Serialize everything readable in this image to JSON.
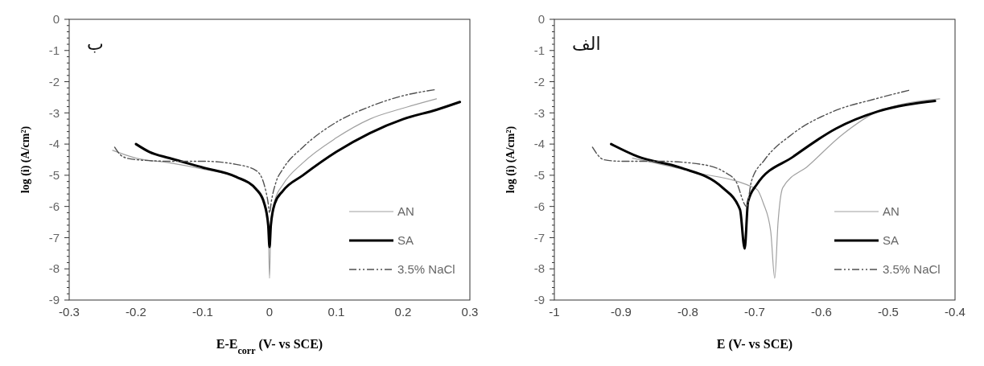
{
  "chart_data": [
    {
      "type": "line",
      "xlabel": "E-E$_{corr}$ (V- vs SCE)",
      "ylabel": "log (i) (A/cm²)",
      "annotations": [
        "ب"
      ],
      "xlim": [
        -0.3,
        0.3
      ],
      "ylim": [
        -9,
        0
      ],
      "xticks": [
        -0.3,
        -0.2,
        -0.1,
        0,
        0.1,
        0.2,
        0.3
      ],
      "yticks": [
        -9,
        -8,
        -7,
        -6,
        -5,
        -4,
        -3,
        -2,
        -1,
        0
      ],
      "grid": false,
      "legend": "bottom right",
      "series": [
        {
          "name": "AN",
          "color": "#a0a0a0",
          "x": [
            -0.235,
            -0.2,
            -0.15,
            -0.1,
            -0.05,
            -0.02,
            -0.008,
            -0.002,
            0,
            0.002,
            0.008,
            0.02,
            0.05,
            0.1,
            0.15,
            0.2,
            0.25
          ],
          "values": [
            -4.2,
            -4.45,
            -4.6,
            -4.8,
            -5.05,
            -5.4,
            -5.8,
            -6.5,
            -8.3,
            -6.5,
            -5.8,
            -5.3,
            -4.6,
            -3.8,
            -3.2,
            -2.85,
            -2.55
          ]
        },
        {
          "name": "SA",
          "color": "#000000",
          "x": [
            -0.2,
            -0.18,
            -0.15,
            -0.1,
            -0.05,
            -0.02,
            -0.008,
            -0.002,
            0,
            0.002,
            0.008,
            0.02,
            0.05,
            0.1,
            0.15,
            0.2,
            0.25,
            0.285
          ],
          "values": [
            -4,
            -4.25,
            -4.45,
            -4.75,
            -5.05,
            -5.45,
            -5.9,
            -6.6,
            -7.3,
            -6.6,
            -5.9,
            -5.5,
            -5,
            -4.25,
            -3.65,
            -3.2,
            -2.9,
            -2.65
          ]
        },
        {
          "name": "3.5% NaCl",
          "color": "#505050",
          "line_style": "dashed",
          "x": [
            -0.232,
            -0.22,
            -0.2,
            -0.15,
            -0.1,
            -0.05,
            -0.02,
            -0.008,
            -0.002,
            0,
            0.003,
            0.01,
            0.02,
            0.05,
            0.1,
            0.15,
            0.2,
            0.25
          ],
          "values": [
            -4.1,
            -4.4,
            -4.5,
            -4.55,
            -4.55,
            -4.65,
            -4.85,
            -5.3,
            -5.9,
            -6.2,
            -5.8,
            -5.2,
            -4.8,
            -4.1,
            -3.3,
            -2.8,
            -2.45,
            -2.25
          ]
        }
      ]
    },
    {
      "type": "line",
      "xlabel": "E (V- vs SCE)",
      "ylabel": "log (i) (A/cm²)",
      "annotations": [
        "الف"
      ],
      "xlim": [
        -1,
        -0.4
      ],
      "ylim": [
        -9,
        0
      ],
      "xticks": [
        -1,
        -0.9,
        -0.8,
        -0.7,
        -0.6,
        -0.5,
        -0.4
      ],
      "yticks": [
        -9,
        -8,
        -7,
        -6,
        -5,
        -4,
        -3,
        -2,
        -1,
        0
      ],
      "grid": false,
      "legend": "bottom right",
      "series": [
        {
          "name": "AN",
          "color": "#a0a0a0",
          "x": [
            -0.883,
            -0.79,
            -0.697,
            -0.687,
            -0.676,
            -0.67,
            -0.665,
            -0.658,
            -0.62,
            -0.569,
            -0.515,
            -0.423
          ],
          "values": [
            -4.45,
            -4.9,
            -5.45,
            -5.9,
            -6.8,
            -8.3,
            -6.5,
            -5.4,
            -4.7,
            -3.7,
            -2.95,
            -2.55
          ]
        },
        {
          "name": "SA",
          "color": "#000000",
          "x": [
            -0.915,
            -0.875,
            -0.812,
            -0.748,
            -0.722,
            -0.715,
            -0.71,
            -0.697,
            -0.642,
            -0.578,
            -0.515,
            -0.43
          ],
          "values": [
            -4,
            -4.4,
            -4.75,
            -5.4,
            -6.1,
            -7.35,
            -5.85,
            -5.3,
            -4.4,
            -3.5,
            -2.95,
            -2.62
          ]
        },
        {
          "name": "3.5% NaCl",
          "color": "#505050",
          "line_style": "dashed",
          "x": [
            -0.943,
            -0.926,
            -0.9,
            -0.843,
            -0.78,
            -0.745,
            -0.728,
            -0.712,
            -0.705,
            -0.685,
            -0.645,
            -0.582,
            -0.519,
            -0.468
          ],
          "values": [
            -4.1,
            -4.5,
            -4.55,
            -4.55,
            -4.65,
            -4.9,
            -5.2,
            -6,
            -5.2,
            -4.5,
            -3.7,
            -2.95,
            -2.55,
            -2.27
          ]
        }
      ]
    }
  ]
}
